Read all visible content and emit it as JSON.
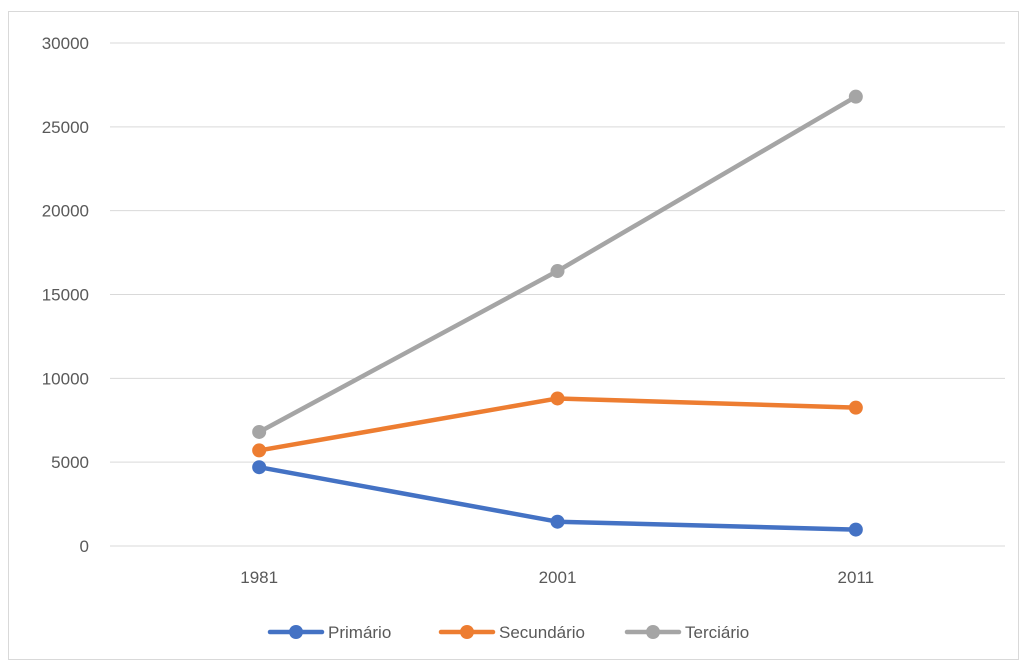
{
  "chart_data": {
    "type": "line",
    "title": "",
    "xlabel": "",
    "ylabel": "",
    "categories": [
      "1981",
      "2001",
      "2011"
    ],
    "ylim": [
      0,
      30000
    ],
    "yticks": [
      0,
      5000,
      10000,
      15000,
      20000,
      25000,
      30000
    ],
    "ytick_labels": [
      "0",
      "5000",
      "10000",
      "15000",
      "20000",
      "25000",
      "30000"
    ],
    "grid": true,
    "legend_position": "bottom",
    "series": [
      {
        "name": "Primário",
        "values": [
          4700,
          1450,
          980
        ],
        "color": "#4472C4"
      },
      {
        "name": "Secundário",
        "values": [
          5700,
          8800,
          8250
        ],
        "color": "#ED7D31"
      },
      {
        "name": "Terciário",
        "values": [
          6800,
          16400,
          26800
        ],
        "color": "#A5A5A5"
      }
    ]
  }
}
